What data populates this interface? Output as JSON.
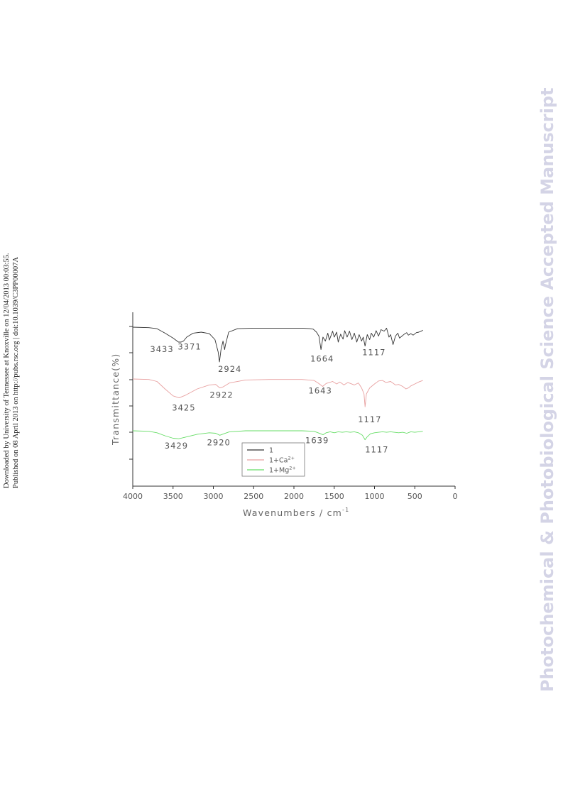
{
  "side_note": {
    "line1": "Downloaded by University of Tennessee at Knoxville on 12/04/2013 00:03:55.",
    "line2": "Published on 08 April 2013 on http://pubs.rsc.org | doi:10.1039/C3PP00007A"
  },
  "watermark": "Photochemical & Photobiological Science Accepted Manuscript",
  "chart_data": {
    "type": "line",
    "xlabel": "Wavenumbers / cm",
    "xlabel_sup": "-1",
    "ylabel": "Transmittance(%)",
    "xlim": [
      4000,
      0
    ],
    "x_ticks": [
      4000,
      3500,
      3000,
      2500,
      2000,
      1500,
      1000,
      500,
      0
    ],
    "legend_position": "bottom-center",
    "grid": false,
    "series": [
      {
        "name": "1",
        "color": "#333333",
        "points": [
          [
            4000,
            100
          ],
          [
            3800,
            99
          ],
          [
            3700,
            97
          ],
          [
            3600,
            88
          ],
          [
            3500,
            78
          ],
          [
            3433,
            70
          ],
          [
            3400,
            70
          ],
          [
            3371,
            72
          ],
          [
            3330,
            80
          ],
          [
            3250,
            88
          ],
          [
            3150,
            90
          ],
          [
            3050,
            87
          ],
          [
            2980,
            75
          ],
          [
            2940,
            50
          ],
          [
            2924,
            30
          ],
          [
            2905,
            55
          ],
          [
            2880,
            72
          ],
          [
            2860,
            55
          ],
          [
            2850,
            64
          ],
          [
            2810,
            90
          ],
          [
            2700,
            97
          ],
          [
            2500,
            98
          ],
          [
            2300,
            98
          ],
          [
            2000,
            98
          ],
          [
            1900,
            98
          ],
          [
            1800,
            97
          ],
          [
            1760,
            96
          ],
          [
            1720,
            90
          ],
          [
            1690,
            82
          ],
          [
            1664,
            55
          ],
          [
            1640,
            80
          ],
          [
            1610,
            72
          ],
          [
            1580,
            88
          ],
          [
            1560,
            74
          ],
          [
            1520,
            92
          ],
          [
            1500,
            80
          ],
          [
            1470,
            90
          ],
          [
            1450,
            70
          ],
          [
            1420,
            86
          ],
          [
            1390,
            76
          ],
          [
            1370,
            93
          ],
          [
            1340,
            80
          ],
          [
            1310,
            92
          ],
          [
            1280,
            75
          ],
          [
            1250,
            88
          ],
          [
            1220,
            70
          ],
          [
            1190,
            85
          ],
          [
            1160,
            72
          ],
          [
            1140,
            80
          ],
          [
            1117,
            62
          ],
          [
            1090,
            85
          ],
          [
            1060,
            75
          ],
          [
            1040,
            88
          ],
          [
            1010,
            80
          ],
          [
            980,
            93
          ],
          [
            950,
            82
          ],
          [
            920,
            95
          ],
          [
            880,
            92
          ],
          [
            850,
            98
          ],
          [
            820,
            80
          ],
          [
            800,
            85
          ],
          [
            770,
            65
          ],
          [
            740,
            82
          ],
          [
            710,
            88
          ],
          [
            690,
            78
          ],
          [
            660,
            82
          ],
          [
            630,
            86
          ],
          [
            600,
            89
          ],
          [
            580,
            84
          ],
          [
            550,
            87
          ],
          [
            520,
            84
          ],
          [
            480,
            89
          ],
          [
            450,
            90
          ],
          [
            420,
            92
          ],
          [
            400,
            94
          ]
        ]
      },
      {
        "name": "1+Ca",
        "name_sup": "2+",
        "color": "#e8a0a0",
        "points": [
          [
            4000,
            100
          ],
          [
            3800,
            99
          ],
          [
            3700,
            95
          ],
          [
            3600,
            80
          ],
          [
            3500,
            66
          ],
          [
            3425,
            62
          ],
          [
            3350,
            67
          ],
          [
            3200,
            80
          ],
          [
            3050,
            88
          ],
          [
            2970,
            89
          ],
          [
            2922,
            82
          ],
          [
            2880,
            84
          ],
          [
            2800,
            92
          ],
          [
            2600,
            98
          ],
          [
            2300,
            99
          ],
          [
            1900,
            99
          ],
          [
            1750,
            97
          ],
          [
            1700,
            92
          ],
          [
            1643,
            85
          ],
          [
            1600,
            91
          ],
          [
            1520,
            95
          ],
          [
            1470,
            90
          ],
          [
            1430,
            94
          ],
          [
            1380,
            88
          ],
          [
            1330,
            93
          ],
          [
            1250,
            88
          ],
          [
            1200,
            92
          ],
          [
            1160,
            82
          ],
          [
            1130,
            70
          ],
          [
            1117,
            44
          ],
          [
            1100,
            70
          ],
          [
            1060,
            82
          ],
          [
            1000,
            90
          ],
          [
            950,
            96
          ],
          [
            900,
            97
          ],
          [
            860,
            93
          ],
          [
            800,
            95
          ],
          [
            740,
            88
          ],
          [
            700,
            89
          ],
          [
            650,
            85
          ],
          [
            610,
            80
          ],
          [
            580,
            82
          ],
          [
            550,
            86
          ],
          [
            500,
            90
          ],
          [
            450,
            94
          ],
          [
            400,
            97
          ]
        ]
      },
      {
        "name": "1+Mg",
        "name_sup": "2+",
        "color": "#66dd66",
        "points": [
          [
            4000,
            100
          ],
          [
            3800,
            99
          ],
          [
            3700,
            96
          ],
          [
            3600,
            90
          ],
          [
            3500,
            85
          ],
          [
            3429,
            84
          ],
          [
            3350,
            87
          ],
          [
            3200,
            93
          ],
          [
            3050,
            96
          ],
          [
            2970,
            95
          ],
          [
            2920,
            91
          ],
          [
            2870,
            94
          ],
          [
            2800,
            98
          ],
          [
            2600,
            100
          ],
          [
            2300,
            100
          ],
          [
            1900,
            100
          ],
          [
            1750,
            99
          ],
          [
            1700,
            96
          ],
          [
            1639,
            92
          ],
          [
            1600,
            96
          ],
          [
            1550,
            98
          ],
          [
            1500,
            96
          ],
          [
            1450,
            98
          ],
          [
            1400,
            97
          ],
          [
            1350,
            98
          ],
          [
            1300,
            97
          ],
          [
            1250,
            98
          ],
          [
            1200,
            96
          ],
          [
            1150,
            91
          ],
          [
            1117,
            82
          ],
          [
            1090,
            88
          ],
          [
            1050,
            94
          ],
          [
            1000,
            96
          ],
          [
            950,
            97
          ],
          [
            900,
            98
          ],
          [
            850,
            97
          ],
          [
            800,
            98
          ],
          [
            700,
            96
          ],
          [
            650,
            97
          ],
          [
            600,
            95
          ],
          [
            550,
            98
          ],
          [
            500,
            97
          ],
          [
            450,
            98
          ],
          [
            400,
            99
          ]
        ]
      }
    ],
    "peak_labels": [
      {
        "series": 0,
        "text": "3433"
      },
      {
        "series": 0,
        "text": "3371"
      },
      {
        "series": 0,
        "text": "2924"
      },
      {
        "series": 0,
        "text": "1664"
      },
      {
        "series": 0,
        "text": "1117"
      },
      {
        "series": 1,
        "text": "3425"
      },
      {
        "series": 1,
        "text": "2922"
      },
      {
        "series": 1,
        "text": "1643"
      },
      {
        "series": 1,
        "text": "1117"
      },
      {
        "series": 2,
        "text": "3429"
      },
      {
        "series": 2,
        "text": "2920"
      },
      {
        "series": 2,
        "text": "1639"
      },
      {
        "series": 2,
        "text": "1117"
      }
    ]
  }
}
